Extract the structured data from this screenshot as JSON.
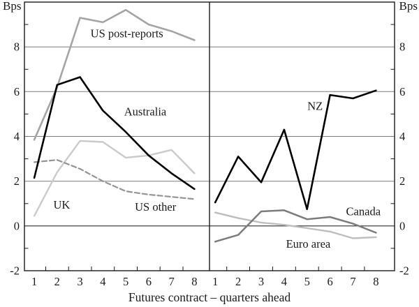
{
  "figure": {
    "unit_label_left": "Bps",
    "unit_label_right": "Bps",
    "x_axis_title": "Futures contract – quarters ahead"
  },
  "style": {
    "grid_color": "#7d7d7d",
    "zero_line_color": "#2b2b2b",
    "axis_color": "#1a1a1a",
    "text_color": "#1a1a1a",
    "background": "#ffffff"
  },
  "chart_data": [
    {
      "type": "line",
      "panel": "left",
      "title": "",
      "xlabel": "Futures contract – quarters ahead",
      "ylabel": "Bps",
      "grid": true,
      "legend": "inline-labels",
      "x": [
        1,
        2,
        3,
        4,
        5,
        6,
        7,
        8
      ],
      "xlim": [
        0.57,
        8.66
      ],
      "ylim": [
        -2,
        10
      ],
      "yticks": [
        -2,
        0,
        2,
        4,
        6,
        8
      ],
      "gridlines_y": [
        0,
        2,
        4,
        6,
        8
      ],
      "yticks_minor": [
        -1,
        1,
        3,
        5,
        7,
        9
      ],
      "xticks_minor": [
        1.5,
        2.5,
        3.5,
        4.5,
        5.5,
        6.5,
        7.5
      ],
      "series": [
        {
          "name": "UK",
          "values": [
            0.45,
            2.4,
            3.8,
            3.75,
            3.05,
            3.15,
            3.4,
            2.35
          ],
          "color": "#cacaca",
          "width": 2.4,
          "dash": "",
          "label_x": 2.2,
          "label_y": 0.95
        },
        {
          "name": "US other",
          "values": [
            2.85,
            2.95,
            2.55,
            2.0,
            1.55,
            1.4,
            1.3,
            1.2
          ],
          "color": "#949494",
          "width": 2.2,
          "dash": "7 4",
          "label_x": 6.3,
          "label_y": 0.85
        },
        {
          "name": "US post-reports",
          "values": [
            3.85,
            6.2,
            9.3,
            9.1,
            9.65,
            9.0,
            8.7,
            8.3
          ],
          "color": "#a4a4a4",
          "width": 2.6,
          "dash": "",
          "label_x": 5.05,
          "label_y": 8.6
        },
        {
          "name": "Australia",
          "values": [
            2.15,
            6.3,
            6.65,
            5.15,
            4.2,
            3.15,
            2.35,
            1.65
          ],
          "color": "#000000",
          "width": 2.6,
          "dash": "",
          "label_x": 5.85,
          "label_y": 5.1
        }
      ]
    },
    {
      "type": "line",
      "panel": "right",
      "title": "",
      "xlabel": "Futures contract – quarters ahead",
      "ylabel": "Bps",
      "grid": true,
      "legend": "inline-labels",
      "x": [
        1,
        2,
        3,
        4,
        5,
        6,
        7,
        8
      ],
      "xlim": [
        0.75,
        8.81
      ],
      "ylim": [
        -2,
        10
      ],
      "yticks": [
        -2,
        0,
        2,
        4,
        6,
        8
      ],
      "gridlines_y": [
        0,
        2,
        4,
        6,
        8
      ],
      "yticks_minor": [
        -1,
        1,
        3,
        5,
        7,
        9
      ],
      "xticks_minor": [
        1.5,
        2.5,
        3.5,
        4.5,
        5.5,
        6.5,
        7.5
      ],
      "series": [
        {
          "name": "Euro area",
          "values": [
            0.6,
            0.35,
            0.15,
            0.05,
            -0.1,
            -0.25,
            -0.55,
            -0.5
          ],
          "color": "#bdbdbd",
          "width": 2.4,
          "dash": "",
          "label_x": 5.05,
          "label_y": -0.8
        },
        {
          "name": "Canada",
          "values": [
            -0.7,
            -0.4,
            0.65,
            0.7,
            0.3,
            0.4,
            0.1,
            -0.3
          ],
          "color": "#7c7c7c",
          "width": 2.5,
          "dash": "",
          "label_x": 7.45,
          "label_y": 0.65
        },
        {
          "name": "NZ",
          "values": [
            1.05,
            3.1,
            1.95,
            4.3,
            0.75,
            5.85,
            5.7,
            6.05
          ],
          "color": "#000000",
          "width": 2.6,
          "dash": "",
          "label_x": 5.35,
          "label_y": 5.35
        }
      ]
    }
  ]
}
